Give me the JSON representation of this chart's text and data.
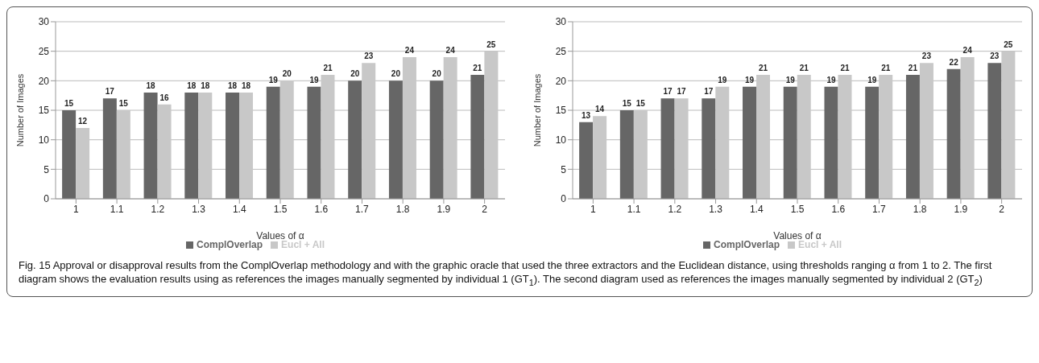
{
  "chart_data": [
    {
      "type": "bar",
      "categories": [
        "1",
        "1.1",
        "1.2",
        "1.3",
        "1.4",
        "1.5",
        "1.6",
        "1.7",
        "1.8",
        "1.9",
        "2"
      ],
      "xlabel": "Values of α",
      "ylabel": "Number of Images",
      "ylim": [
        0,
        30
      ],
      "yticks": [
        0,
        5,
        10,
        15,
        20,
        25,
        30
      ],
      "grid": "y",
      "legend": "bottom",
      "data_labels": true,
      "series": [
        {
          "name": "ComplOverlap",
          "color": "#666666",
          "values": [
            15,
            17,
            18,
            18,
            18,
            19,
            19,
            20,
            20,
            20,
            21
          ]
        },
        {
          "name": "Eucl + All",
          "color": "#c8c8c8",
          "values": [
            12,
            15,
            16,
            18,
            18,
            20,
            21,
            23,
            24,
            24,
            25
          ]
        }
      ],
      "annotations": [
        "Fig. 15 Approval or disapproval results from the ComplOverlap methodology and with the graphic oracle that used the three extractors and the Euclidean distance, using thresholds ranging α from 1 to 2. The first diagram shows the evaluation results using as references the images manually segmented by individual 1 (GT$_{1}$). The second diagram used as references the images manually segmented by individual 2 (GT$_{2}$)"
      ]
    },
    {
      "type": "bar",
      "categories": [
        "1",
        "1.1",
        "1.2",
        "1.3",
        "1.4",
        "1.5",
        "1.6",
        "1.7",
        "1.8",
        "1.9",
        "2"
      ],
      "xlabel": "Values of α",
      "ylabel": "Number of Images",
      "ylim": [
        0,
        30
      ],
      "yticks": [
        0,
        5,
        10,
        15,
        20,
        25,
        30
      ],
      "grid": "y",
      "legend": "bottom",
      "data_labels": true,
      "series": [
        {
          "name": "ComplOverlap",
          "color": "#666666",
          "values": [
            13,
            15,
            17,
            17,
            19,
            19,
            19,
            19,
            21,
            22,
            23
          ]
        },
        {
          "name": "Eucl + All",
          "color": "#c8c8c8",
          "values": [
            14,
            15,
            17,
            19,
            21,
            21,
            21,
            21,
            23,
            24,
            25
          ]
        }
      ]
    }
  ]
}
